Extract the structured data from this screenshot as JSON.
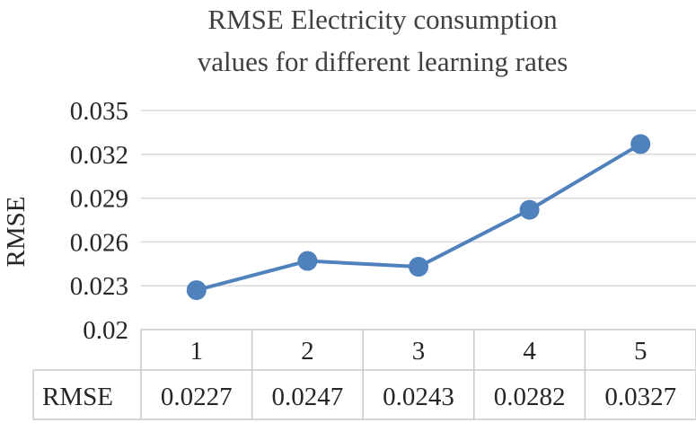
{
  "chart_data": {
    "type": "line",
    "title_lines": [
      "RMSE Electricity consumption",
      "values for different learning rates"
    ],
    "ylabel": "RMSE",
    "categories": [
      "1",
      "2",
      "3",
      "4",
      "5"
    ],
    "series": [
      {
        "name": "RMSE",
        "values": [
          0.0227,
          0.0247,
          0.0243,
          0.0282,
          0.0327
        ]
      }
    ],
    "value_labels": [
      "0.0227",
      "0.0247",
      "0.0243",
      "0.0282",
      "0.0327"
    ],
    "yticks": [
      "0.02",
      "0.023",
      "0.026",
      "0.029",
      "0.032",
      "0.035"
    ],
    "ylim": [
      0.02,
      0.035
    ],
    "grid": true,
    "data_table": true,
    "color": "#4f81bd"
  }
}
